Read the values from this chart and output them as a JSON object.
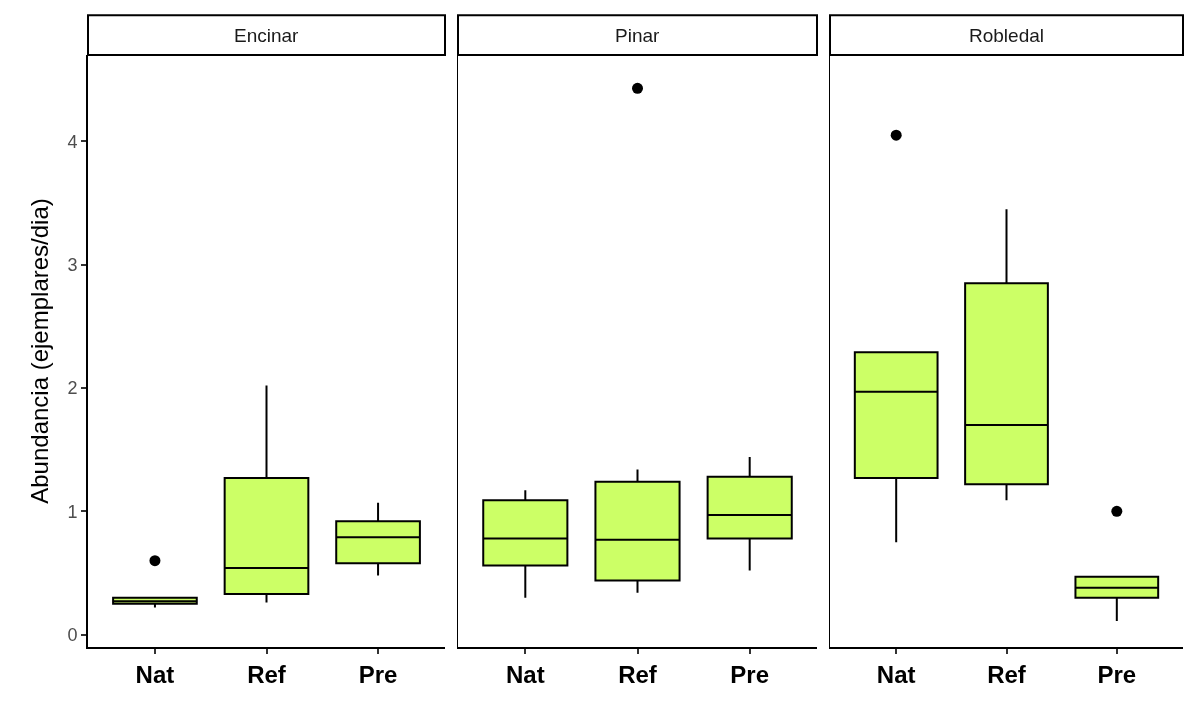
{
  "chart_data": [
    {
      "type": "box",
      "title": "Encinar",
      "ylabel": "Abundancia (ejemplares/dia)",
      "categories": [
        "Nat",
        "Ref",
        "Pre"
      ],
      "color": "#ccff66",
      "ylim": [
        -0.1,
        4.7
      ],
      "yticks": [
        0,
        1,
        2,
        3,
        4
      ],
      "boxes": [
        {
          "low": 0.22,
          "q1": 0.25,
          "median": 0.27,
          "q3": 0.3,
          "high": 0.3,
          "outliers": [
            0.6
          ]
        },
        {
          "low": 0.26,
          "q1": 0.33,
          "median": 0.54,
          "q3": 1.27,
          "high": 2.02
        },
        {
          "low": 0.48,
          "q1": 0.58,
          "median": 0.79,
          "q3": 0.92,
          "high": 1.07
        }
      ]
    },
    {
      "type": "box",
      "title": "Pinar",
      "categories": [
        "Nat",
        "Ref",
        "Pre"
      ],
      "color": "#ccff66",
      "ylim": [
        -0.1,
        4.7
      ],
      "yticks": [
        0,
        1,
        2,
        3,
        4
      ],
      "tick_labels": "x",
      "boxes": [
        {
          "low": 0.3,
          "q1": 0.56,
          "median": 0.78,
          "q3": 1.09,
          "high": 1.17
        },
        {
          "low": 0.34,
          "q1": 0.44,
          "median": 0.77,
          "q3": 1.24,
          "high": 1.34,
          "outliers": [
            4.43
          ]
        },
        {
          "low": 0.52,
          "q1": 0.78,
          "median": 0.97,
          "q3": 1.28,
          "high": 1.44
        }
      ]
    },
    {
      "type": "box",
      "title": "Robledal",
      "categories": [
        "Nat",
        "Ref",
        "Pre"
      ],
      "color": "#ccff66",
      "ylim": [
        -0.1,
        4.7
      ],
      "yticks": [
        0,
        1,
        2,
        3,
        4
      ],
      "tick_labels": "x",
      "boxes": [
        {
          "low": 0.75,
          "q1": 1.27,
          "median": 1.97,
          "q3": 2.29,
          "high": 2.29,
          "outliers": [
            4.05
          ]
        },
        {
          "low": 1.09,
          "q1": 1.22,
          "median": 1.7,
          "q3": 2.85,
          "high": 3.45
        },
        {
          "low": 0.11,
          "q1": 0.3,
          "median": 0.38,
          "q3": 0.47,
          "high": 0.47,
          "outliers": [
            1.0
          ]
        }
      ]
    }
  ]
}
